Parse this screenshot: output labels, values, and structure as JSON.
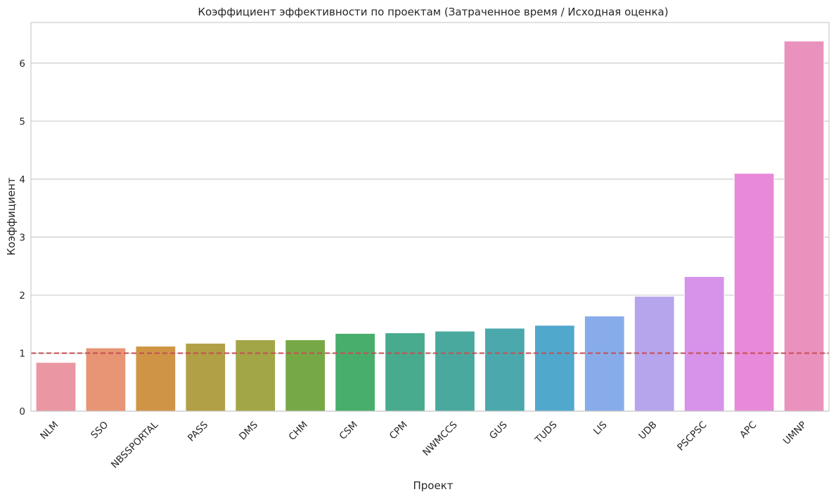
{
  "chart_data": {
    "type": "bar",
    "title": "Коэффициент эффективности по проектам (Затраченное время / Исходная оценка)",
    "xlabel": "Проект",
    "ylabel": "Коэффициент",
    "categories": [
      "NLM",
      "SSO",
      "NBSSPORTAL",
      "PASS",
      "DMS",
      "CHM",
      "CSM",
      "CPM",
      "NWMCCS",
      "GUS",
      "TUDS",
      "LIS",
      "UDB",
      "PSCPSC",
      "APC",
      "UMNP"
    ],
    "values": [
      0.84,
      1.09,
      1.12,
      1.17,
      1.23,
      1.23,
      1.34,
      1.35,
      1.38,
      1.43,
      1.48,
      1.64,
      1.98,
      2.32,
      4.1,
      6.38
    ],
    "colors": [
      "#ea96a3",
      "#e79574",
      "#cf9545",
      "#b1a046",
      "#a2a646",
      "#76a946",
      "#48ae6c",
      "#49ab8e",
      "#4aa99e",
      "#4ba8ad",
      "#51a8cd",
      "#88acea",
      "#b6a4ec",
      "#d792ea",
      "#e88ada",
      "#ea92be"
    ],
    "reference_line": {
      "y": 1,
      "style": "dashed",
      "color": "#c44e52"
    },
    "ylim": [
      0,
      6.7
    ],
    "yticks": [
      0,
      1,
      2,
      3,
      4,
      5,
      6
    ],
    "grid": "y",
    "legend": "none"
  }
}
